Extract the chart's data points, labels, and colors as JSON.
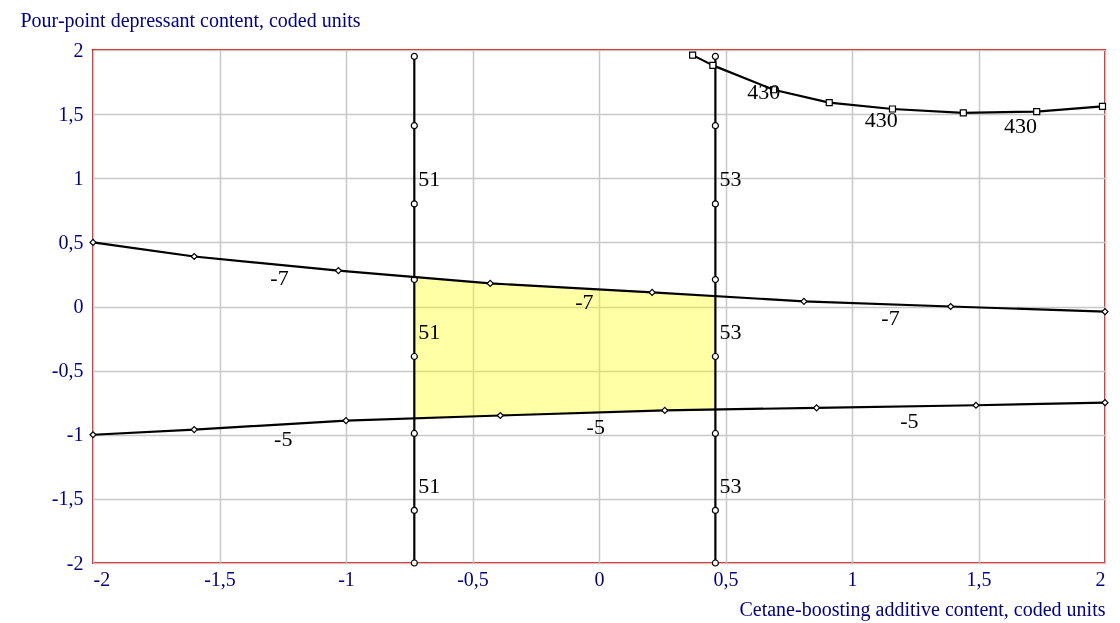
{
  "chart_data": {
    "type": "line",
    "xlabel": "Cetane-boosting additive content, coded units",
    "ylabel": "Pour-point depressant content, coded units",
    "xlim": [
      -2,
      2
    ],
    "ylim": [
      -2,
      2
    ],
    "xticks": [
      -2,
      {
        "value": -1.5,
        "label": "-1,5"
      },
      -1,
      {
        "value": -0.5,
        "label": "-0,5"
      },
      0,
      {
        "value": 0.5,
        "label": "0,5"
      },
      1,
      {
        "value": 1.5,
        "label": "1,5"
      },
      2
    ],
    "yticks": [
      -2,
      {
        "value": -1.5,
        "label": "-1,5"
      },
      -1,
      {
        "value": -0.5,
        "label": "-0,5"
      },
      0,
      {
        "value": 0.5,
        "label": "0,5"
      },
      1,
      {
        "value": 1.5,
        "label": "1,5"
      },
      2
    ],
    "grid": true,
    "series": [
      {
        "name": "51",
        "color": "#000000",
        "marker": "circle",
        "x": [
          -0.73,
          -0.73,
          -0.73,
          -0.73,
          -0.73,
          -0.73,
          -0.73,
          -0.73
        ],
        "values": [
          -2,
          -1.59,
          -0.99,
          -0.39,
          0.21,
          0.8,
          1.41,
          1.95
        ]
      },
      {
        "name": "53",
        "color": "#000000",
        "marker": "circle",
        "x": [
          0.46,
          0.46,
          0.46,
          0.46,
          0.46,
          0.46,
          0.46,
          0.46
        ],
        "values": [
          -2,
          -1.59,
          -0.99,
          -0.39,
          0.21,
          0.8,
          1.41,
          1.95
        ]
      },
      {
        "name": "-7",
        "color": "#000000",
        "marker": "diamond",
        "x": [
          -2,
          -1.6,
          -1.03,
          -0.43,
          0.21,
          0.81,
          1.39,
          2
        ],
        "values": [
          0.5,
          0.39,
          0.28,
          0.18,
          0.11,
          0.04,
          0,
          -0.04
        ]
      },
      {
        "name": "-5",
        "color": "#000000",
        "marker": "diamond",
        "x": [
          -2,
          -1.6,
          -1.0,
          -0.39,
          0.26,
          0.86,
          1.49,
          2
        ],
        "values": [
          -1.0,
          -0.96,
          -0.89,
          -0.85,
          -0.81,
          -0.79,
          -0.77,
          -0.75
        ]
      },
      {
        "name": "430",
        "color": "#000000",
        "marker": "square",
        "x": [
          0.37,
          0.45,
          0.69,
          0.91,
          1.16,
          1.44,
          1.73,
          1.99
        ],
        "values": [
          1.96,
          1.88,
          1.69,
          1.59,
          1.54,
          1.51,
          1.52,
          1.56
        ]
      }
    ]
  }
}
